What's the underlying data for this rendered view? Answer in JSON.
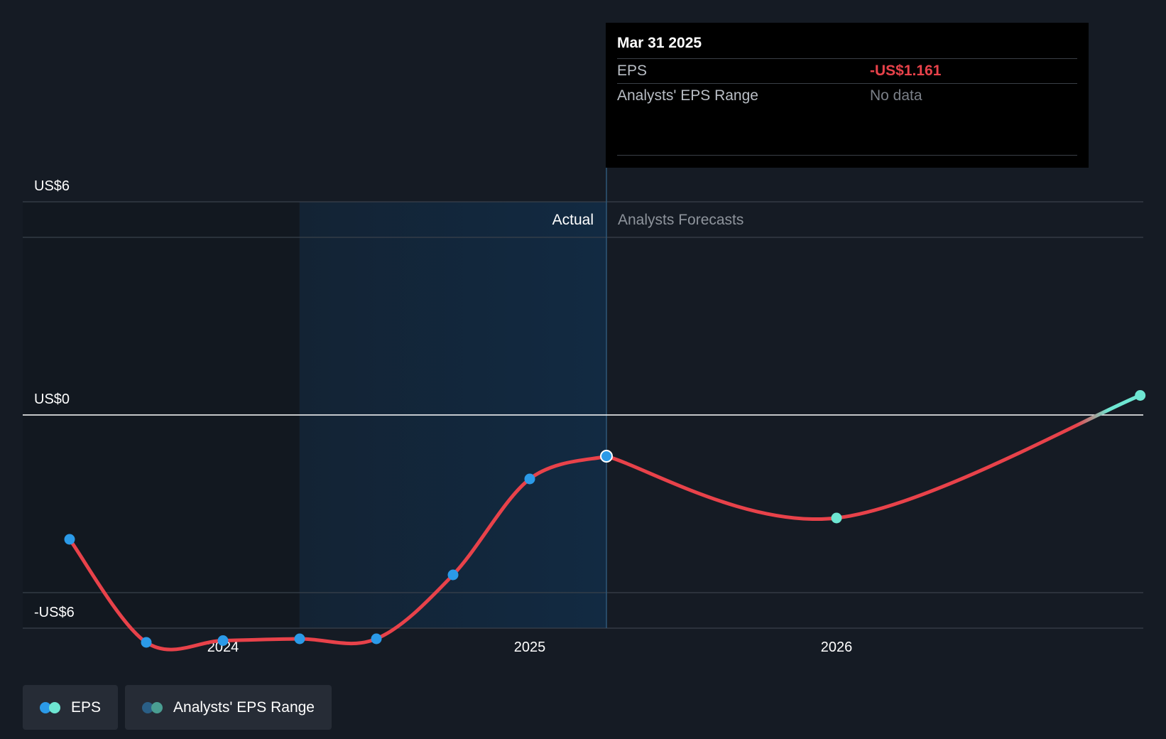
{
  "tooltip": {
    "date": "Mar 31 2025",
    "rows": [
      {
        "label": "EPS",
        "value": "-US$1.161",
        "color": "#e8424a"
      },
      {
        "label": "Analysts' EPS Range",
        "value": "No data",
        "color": "#7b8088"
      }
    ]
  },
  "legend": {
    "items": [
      {
        "label": "EPS",
        "colors": [
          "#2b9ae8",
          "#6ee6d2"
        ]
      },
      {
        "label": "Analysts' EPS Range",
        "colors": [
          "#2a5f86",
          "#4a9e92"
        ]
      }
    ]
  },
  "colors": {
    "background": "#151b24",
    "actual_shade": "#13263a",
    "eps_line": "#e8424a",
    "actual_point": "#2b9ae8",
    "forecast_point": "#6ee6d2",
    "zero_line": "#ffffff",
    "grid": "#3a414b"
  },
  "chart_data": {
    "type": "line",
    "title": "",
    "xlabel": "",
    "ylabel": "",
    "ylim": [
      -6,
      6
    ],
    "x_ticks": [
      {
        "label": "2024",
        "year": 2024.0
      },
      {
        "label": "2025",
        "year": 2025.0
      },
      {
        "label": "2026",
        "year": 2026.0
      }
    ],
    "y_ticks": [
      {
        "label": "US$6",
        "value": 6
      },
      {
        "label": "US$0",
        "value": 0
      },
      {
        "label": "-US$6",
        "value": -6
      }
    ],
    "regions": {
      "actual_label": "Actual",
      "forecast_label": "Analysts Forecasts",
      "actual_start": 2024.25,
      "divider": 2025.25
    },
    "series": [
      {
        "name": "EPS",
        "kind": "actual",
        "points": [
          {
            "x": 2023.5,
            "y": -3.5
          },
          {
            "x": 2023.75,
            "y": -6.4
          },
          {
            "x": 2024.0,
            "y": -6.35
          },
          {
            "x": 2024.25,
            "y": -6.3
          },
          {
            "x": 2024.5,
            "y": -6.3
          },
          {
            "x": 2024.75,
            "y": -4.5
          },
          {
            "x": 2025.0,
            "y": -1.8
          },
          {
            "x": 2025.25,
            "y": -1.161
          }
        ]
      },
      {
        "name": "EPS",
        "kind": "forecast",
        "points": [
          {
            "x": 2025.25,
            "y": -1.161
          },
          {
            "x": 2026.0,
            "y": -2.9
          },
          {
            "x": 2026.99,
            "y": 0.55
          }
        ]
      }
    ]
  }
}
